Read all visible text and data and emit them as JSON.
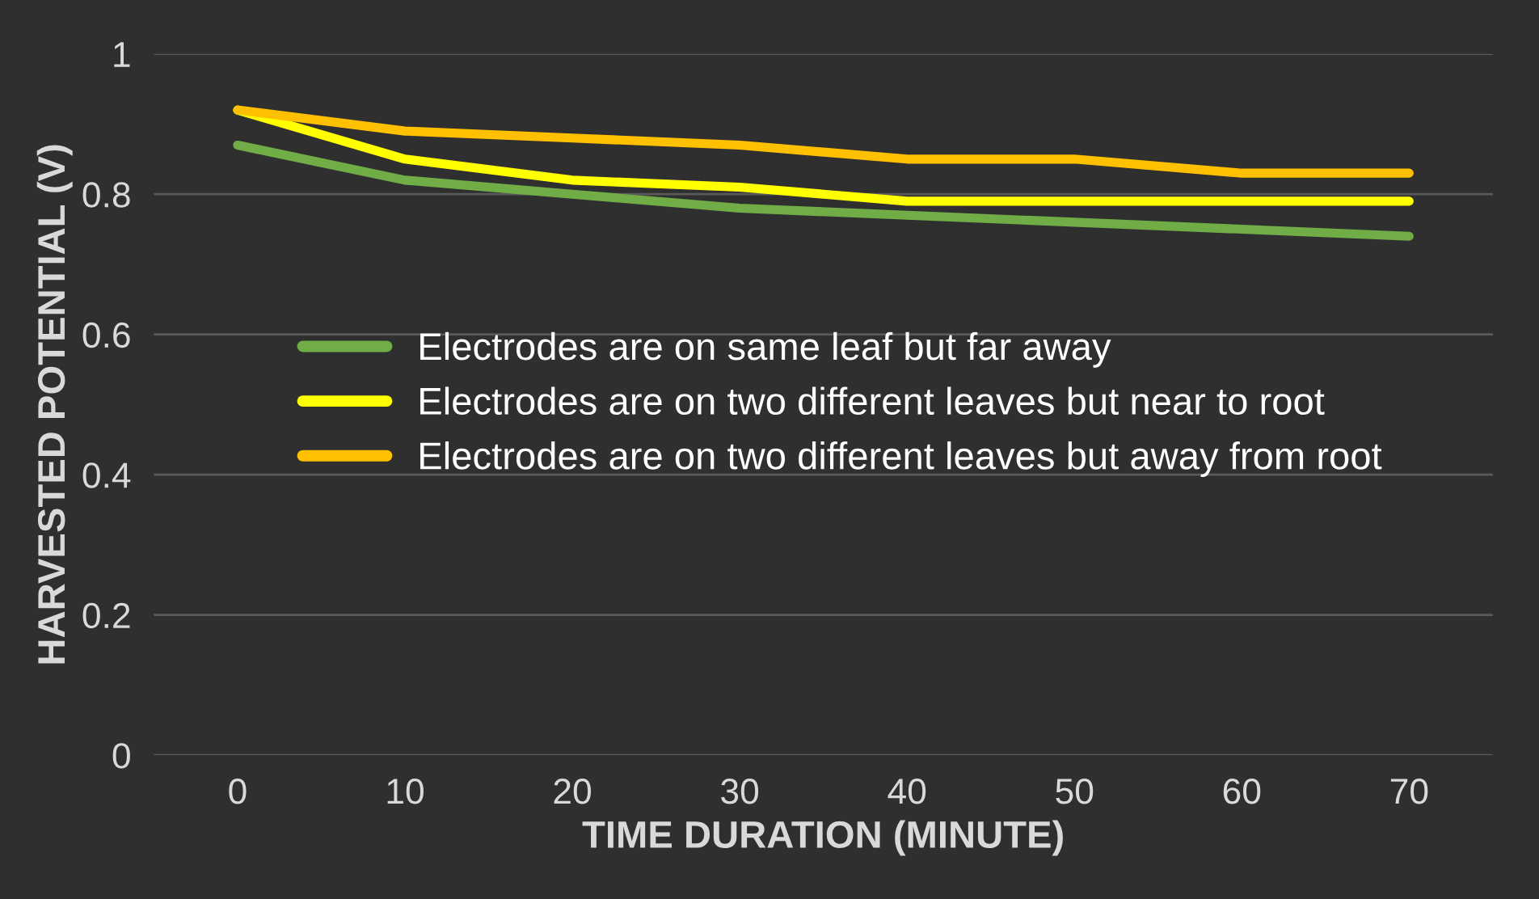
{
  "chart_data": {
    "type": "line",
    "xlabel": "TIME DURATION (MINUTE)",
    "ylabel": "HARVESTED POTENTIAL (V)",
    "categories": [
      "0",
      "10",
      "20",
      "30",
      "40",
      "50",
      "60",
      "70"
    ],
    "series": [
      {
        "name": "Electrodes are on same leaf but far away",
        "color": "#70ad47",
        "values": [
          0.87,
          0.82,
          0.8,
          0.78,
          0.77,
          0.76,
          0.75,
          0.74
        ]
      },
      {
        "name": "Electrodes are on two different leaves but near to root",
        "color": "#ffff00",
        "values": [
          0.92,
          0.85,
          0.82,
          0.81,
          0.79,
          0.79,
          0.79,
          0.79
        ]
      },
      {
        "name": "Electrodes are on two different leaves but away from root",
        "color": "#ffc000",
        "values": [
          0.92,
          0.89,
          0.88,
          0.87,
          0.85,
          0.85,
          0.83,
          0.83
        ]
      }
    ],
    "ylim": [
      0,
      1
    ],
    "yticks": [
      0,
      0.2,
      0.4,
      0.6,
      0.8,
      1
    ],
    "grid": "y",
    "legend": "center left",
    "marker": "none",
    "line_style": "solid"
  }
}
